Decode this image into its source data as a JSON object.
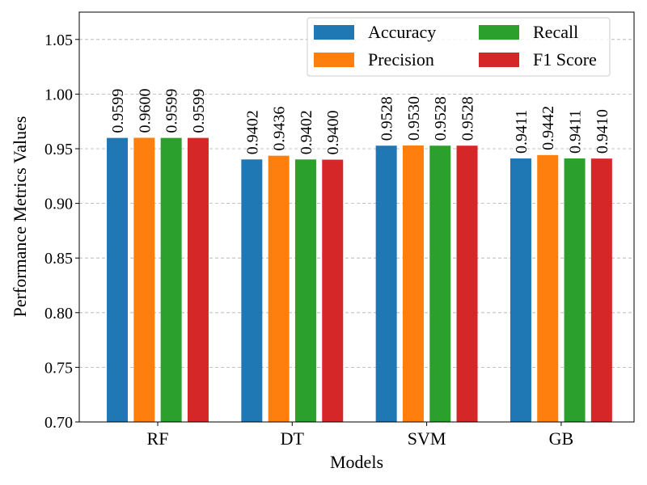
{
  "chart_data": {
    "type": "bar",
    "title": "",
    "xlabel": "Models",
    "ylabel": "Performance Metrics Values",
    "categories": [
      "RF",
      "DT",
      "SVM",
      "GB"
    ],
    "ylim": [
      0.7,
      1.075
    ],
    "yticks": [
      "0.70",
      "0.75",
      "0.80",
      "0.85",
      "0.90",
      "0.95",
      "1.00",
      "1.05"
    ],
    "grid": "horizontal dashed",
    "legend_position": "top-right",
    "series": [
      {
        "name": "Accuracy",
        "color": "#1f77b4",
        "values": [
          0.9599,
          0.9402,
          0.9528,
          0.9411
        ],
        "labels": [
          "0.9599",
          "0.9402",
          "0.9528",
          "0.9411"
        ]
      },
      {
        "name": "Precision",
        "color": "#ff7f0e",
        "values": [
          0.96,
          0.9436,
          0.953,
          0.9442
        ],
        "labels": [
          "0.9600",
          "0.9436",
          "0.9530",
          "0.9442"
        ]
      },
      {
        "name": "Recall",
        "color": "#2ca02c",
        "values": [
          0.9599,
          0.9402,
          0.9528,
          0.9411
        ],
        "labels": [
          "0.9599",
          "0.9402",
          "0.9528",
          "0.9411"
        ]
      },
      {
        "name": "F1 Score",
        "color": "#d62728",
        "values": [
          0.9599,
          0.94,
          0.9528,
          0.941
        ],
        "labels": [
          "0.9599",
          "0.9400",
          "0.9528",
          "0.9410"
        ]
      }
    ]
  }
}
